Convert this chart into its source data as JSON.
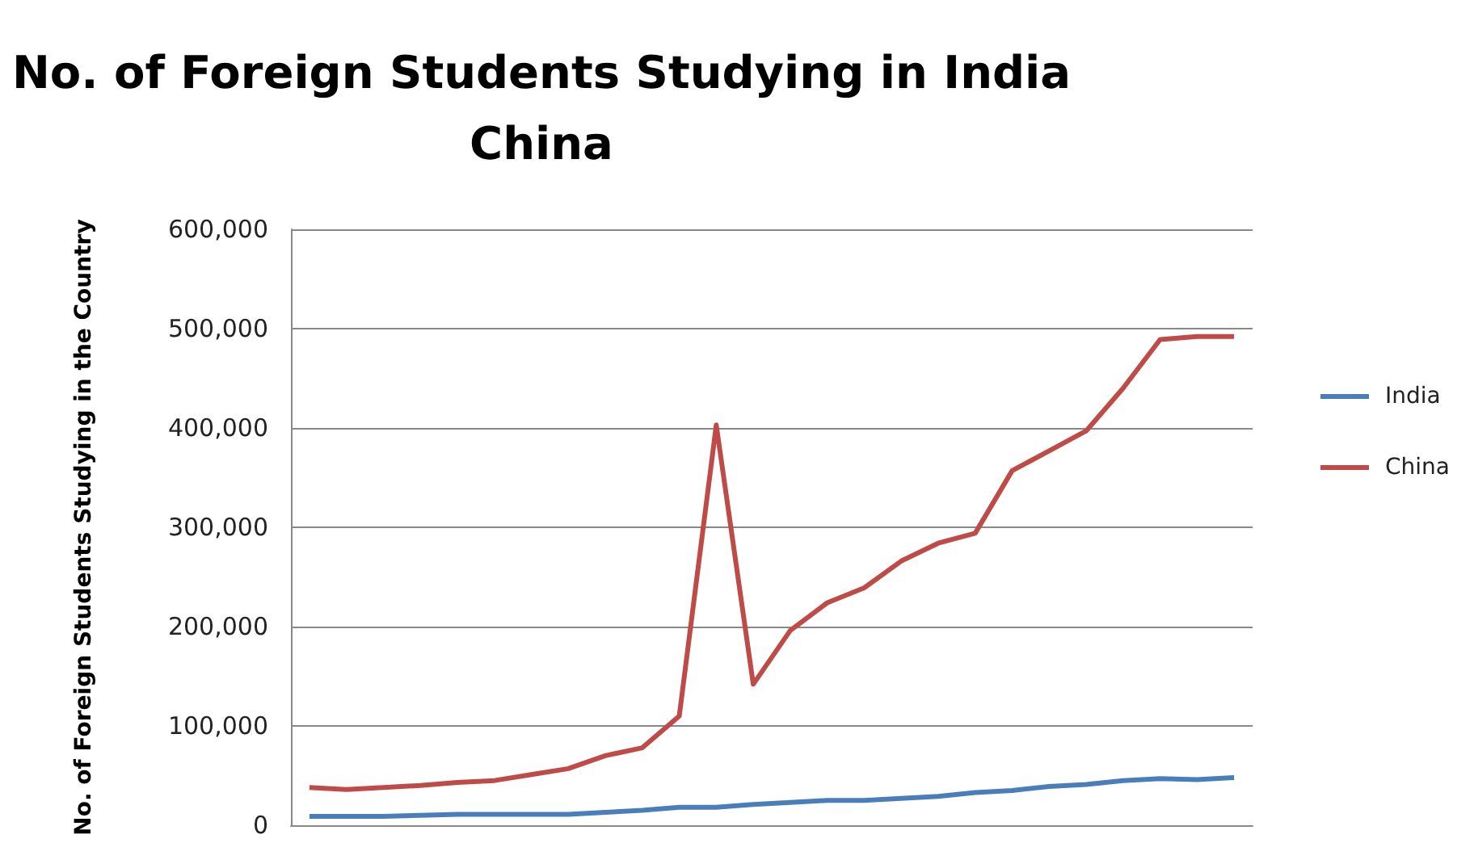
{
  "chart_data": {
    "type": "line",
    "title": "No. of Foreign Students Studying in India\nChina",
    "ylabel": "No. of Foreign Students Studying in the Country",
    "categories": [
      null,
      null,
      null,
      null,
      null,
      null,
      null,
      null,
      null,
      null,
      null,
      null,
      null,
      null,
      null,
      null,
      null,
      null,
      null,
      null,
      null,
      null,
      null,
      null,
      null,
      null
    ],
    "series": [
      {
        "name": "India",
        "color": "#4a7ebb",
        "values": [
          9000,
          9000,
          9000,
          10000,
          11000,
          11000,
          11000,
          11000,
          13000,
          15000,
          18000,
          18000,
          21000,
          23000,
          25000,
          25000,
          27000,
          29000,
          33000,
          35000,
          39000,
          41000,
          45000,
          47000,
          46000,
          48000
        ]
      },
      {
        "name": "China",
        "color": "#be4b48",
        "values": [
          38000,
          36000,
          38000,
          40000,
          43000,
          45000,
          51000,
          57000,
          70000,
          78000,
          110000,
          403000,
          142000,
          196000,
          224000,
          239000,
          266000,
          284000,
          294000,
          357000,
          377000,
          397000,
          440000,
          489000,
          492000,
          492000
        ]
      }
    ],
    "ylim": [
      0,
      600000
    ],
    "yticks": [
      0,
      {
        "value": 100000,
        "label": "100,000"
      },
      {
        "value": 200000,
        "label": "200,000"
      },
      {
        "value": 300000,
        "label": "300,000"
      },
      {
        "value": 400000,
        "label": "400,000"
      },
      {
        "value": 500000,
        "label": "500,000"
      },
      {
        "value": 600000,
        "label": "600,000"
      }
    ],
    "grid": "y",
    "legend": "right",
    "marker": "none",
    "line_style": "solid"
  }
}
